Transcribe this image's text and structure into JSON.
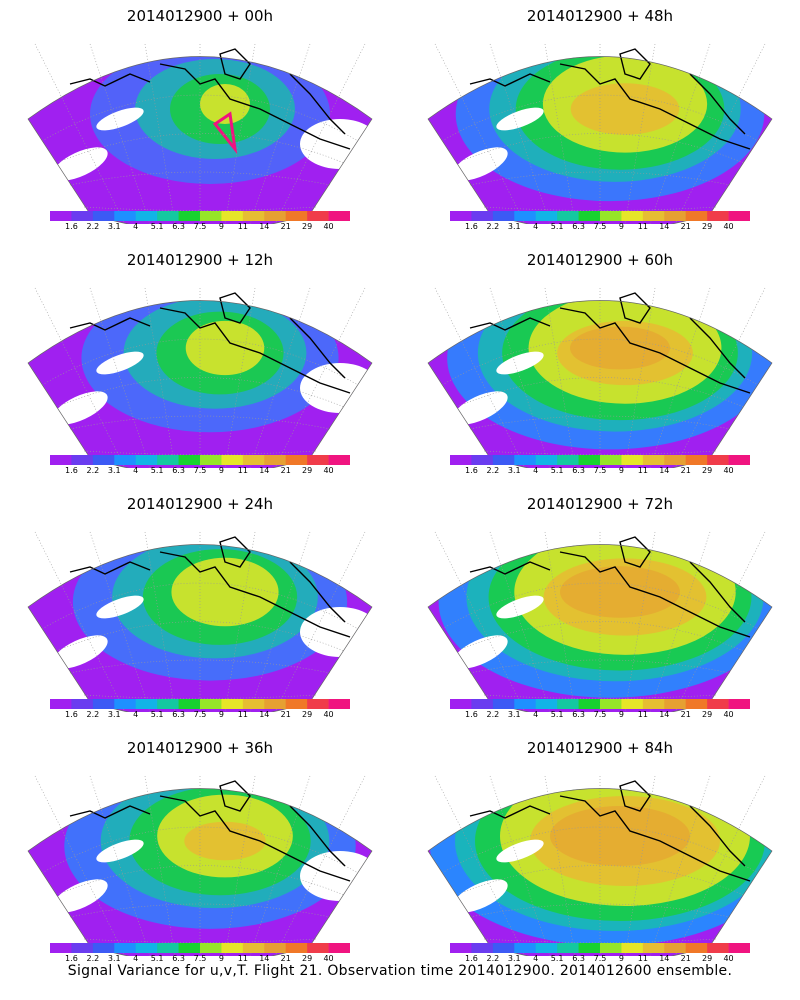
{
  "panels": [
    {
      "title": "2014012900 + 00h",
      "lead_hours": 0
    },
    {
      "title": "2014012900 + 48h",
      "lead_hours": 48
    },
    {
      "title": "2014012900 + 12h",
      "lead_hours": 12
    },
    {
      "title": "2014012900 + 60h",
      "lead_hours": 60
    },
    {
      "title": "2014012900 + 24h",
      "lead_hours": 24
    },
    {
      "title": "2014012900 + 72h",
      "lead_hours": 72
    },
    {
      "title": "2014012900 + 36h",
      "lead_hours": 36
    },
    {
      "title": "2014012900 + 84h",
      "lead_hours": 84
    }
  ],
  "colorbar": {
    "ticks": [
      "1.6",
      "2.2",
      "3.1",
      "4",
      "5.1",
      "6.3",
      "7.5",
      "9",
      "11",
      "14",
      "21",
      "29",
      "40"
    ],
    "colors": [
      "#a020f0",
      "#6a3cf0",
      "#3c5af5",
      "#1e90ff",
      "#12b4e6",
      "#14c8a0",
      "#18d230",
      "#96e628",
      "#e6e628",
      "#e6be32",
      "#e6a032",
      "#f07828",
      "#f03c4a",
      "#f01480"
    ]
  },
  "footer": "Signal Variance for u,v,T. Flight 21. Observation time 2014012900. 2014012600 ensemble."
}
